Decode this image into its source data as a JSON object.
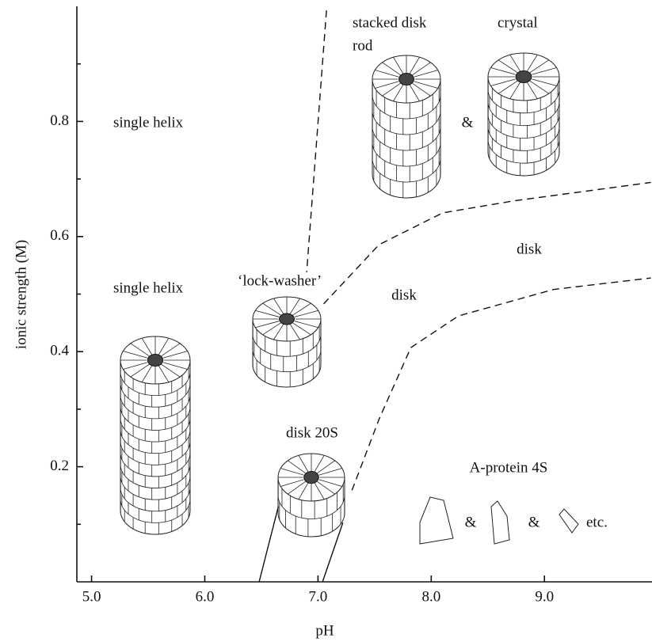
{
  "chart_data": {
    "type": "phase-diagram",
    "x_label": "pH",
    "y_label": "ionic strength (M)",
    "xlim": [
      4.87,
      9.95
    ],
    "ylim": [
      0,
      1.0
    ],
    "xticks": [
      {
        "value": 5,
        "label": "5.0"
      },
      {
        "value": 6,
        "label": "6.0"
      },
      {
        "value": 7,
        "label": "7.0"
      },
      {
        "value": 8,
        "label": "8.0"
      },
      {
        "value": 9,
        "label": "9.0"
      }
    ],
    "yticks": [
      0.2,
      0.4,
      0.6,
      0.8
    ],
    "yminorticks": [
      0.1,
      0.3,
      0.5,
      0.7,
      0.9
    ],
    "boundaries": [
      {
        "style": "dashed",
        "x": [
          7.075,
          6.9
        ],
        "y": [
          0.993,
          0.538
        ]
      },
      {
        "style": "dashed",
        "x": [
          7.05,
          7.54,
          8.1,
          8.73,
          9.94
        ],
        "y": [
          0.483,
          0.586,
          0.641,
          0.662,
          0.694
        ]
      },
      {
        "style": "dashed",
        "x": [
          7.3,
          7.54,
          7.82,
          8.24,
          9.08,
          9.94
        ],
        "y": [
          0.159,
          0.283,
          0.407,
          0.462,
          0.508,
          0.528
        ]
      },
      {
        "style": "solid",
        "x": [
          6.48,
          6.65
        ],
        "y": [
          0.0,
          0.131
        ]
      },
      {
        "style": "solid",
        "x": [
          7.04,
          7.22
        ],
        "y": [
          0.0,
          0.103
        ]
      }
    ],
    "annotations": [
      "stacked disk",
      "rod",
      "crystal",
      "&",
      "single helix",
      "‘lock-washer’",
      "disk",
      "disk",
      "single helix",
      "disk 20S",
      "A-protein 4S",
      "&",
      "&",
      "etc."
    ]
  }
}
